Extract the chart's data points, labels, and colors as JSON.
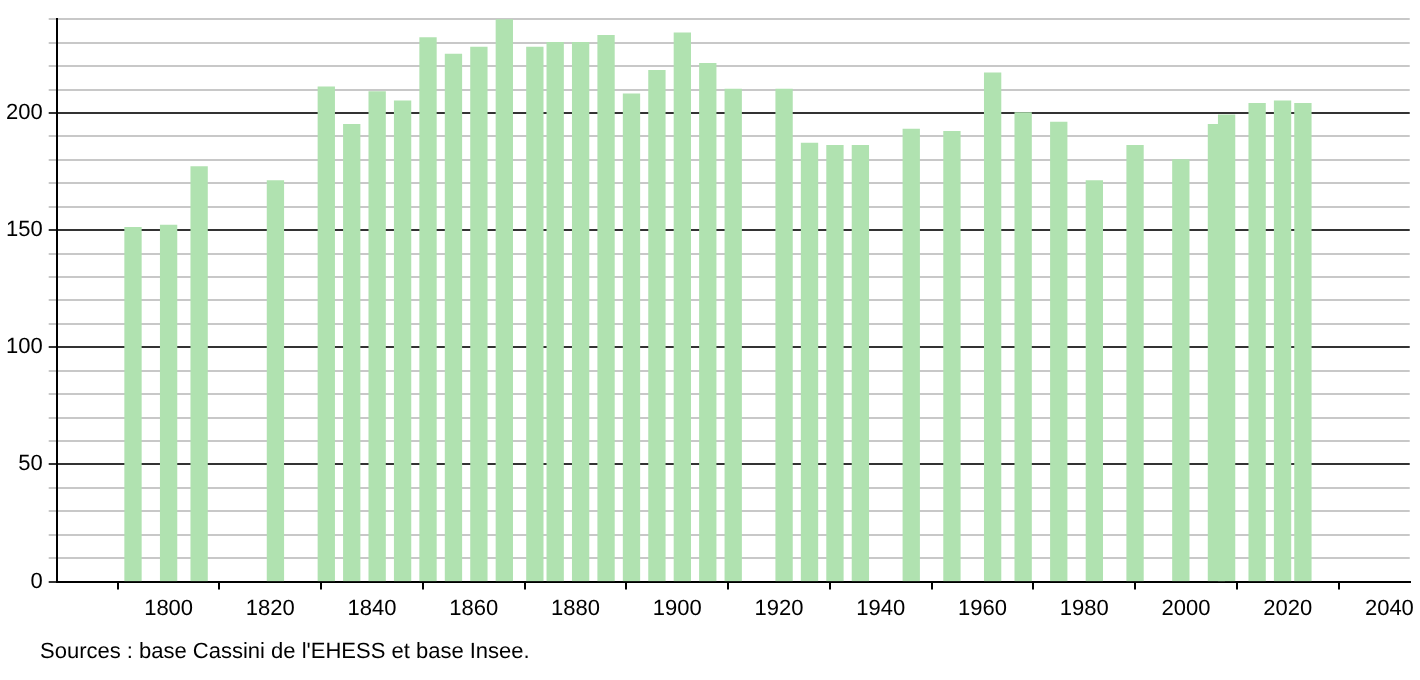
{
  "chart_data": {
    "type": "bar",
    "x": [
      1793,
      1800,
      1806,
      1821,
      1831,
      1836,
      1841,
      1846,
      1851,
      1856,
      1861,
      1866,
      1872,
      1876,
      1881,
      1886,
      1891,
      1896,
      1901,
      1906,
      1911,
      1921,
      1926,
      1931,
      1936,
      1946,
      1954,
      1962,
      1968,
      1975,
      1982,
      1990,
      1999,
      2006,
      2008,
      2014,
      2019,
      2023
    ],
    "values": [
      151,
      152,
      177,
      171,
      211,
      195,
      209,
      205,
      232,
      225,
      228,
      240,
      228,
      230,
      230,
      233,
      208,
      218,
      234,
      221,
      210,
      210,
      187,
      186,
      186,
      193,
      192,
      217,
      200,
      196,
      171,
      186,
      180,
      195,
      199,
      204,
      205,
      204
    ],
    "color": "#b0e2b0",
    "xlim": [
      1778,
      2044
    ],
    "xticks": [
      1800,
      1820,
      1840,
      1860,
      1880,
      1900,
      1920,
      1940,
      1960,
      1980,
      2000,
      2020,
      2040
    ],
    "ylim": [
      0,
      240
    ],
    "yticks": [
      0,
      {
        "value": 10,
        "label": null
      },
      {
        "value": 20,
        "label": null
      },
      {
        "value": 30,
        "label": null
      },
      {
        "value": 40,
        "label": null
      },
      50,
      {
        "value": 60,
        "label": null
      },
      {
        "value": 70,
        "label": null
      },
      {
        "value": 80,
        "label": null
      },
      {
        "value": 90,
        "label": null
      },
      100,
      {
        "value": 110,
        "label": null
      },
      {
        "value": 120,
        "label": null
      },
      {
        "value": 130,
        "label": null
      },
      {
        "value": 140,
        "label": null
      },
      150,
      {
        "value": 160,
        "label": null
      },
      {
        "value": 170,
        "label": null
      },
      {
        "value": 180,
        "label": null
      },
      {
        "value": 190,
        "label": null
      },
      200,
      {
        "value": 210,
        "label": null
      },
      {
        "value": 220,
        "label": null
      },
      {
        "value": 230,
        "label": null
      },
      {
        "value": 240,
        "label": null
      }
    ],
    "grid": "y",
    "annotations": [
      "Sources : base Cassini de l'EHESS et base Insee."
    ]
  }
}
